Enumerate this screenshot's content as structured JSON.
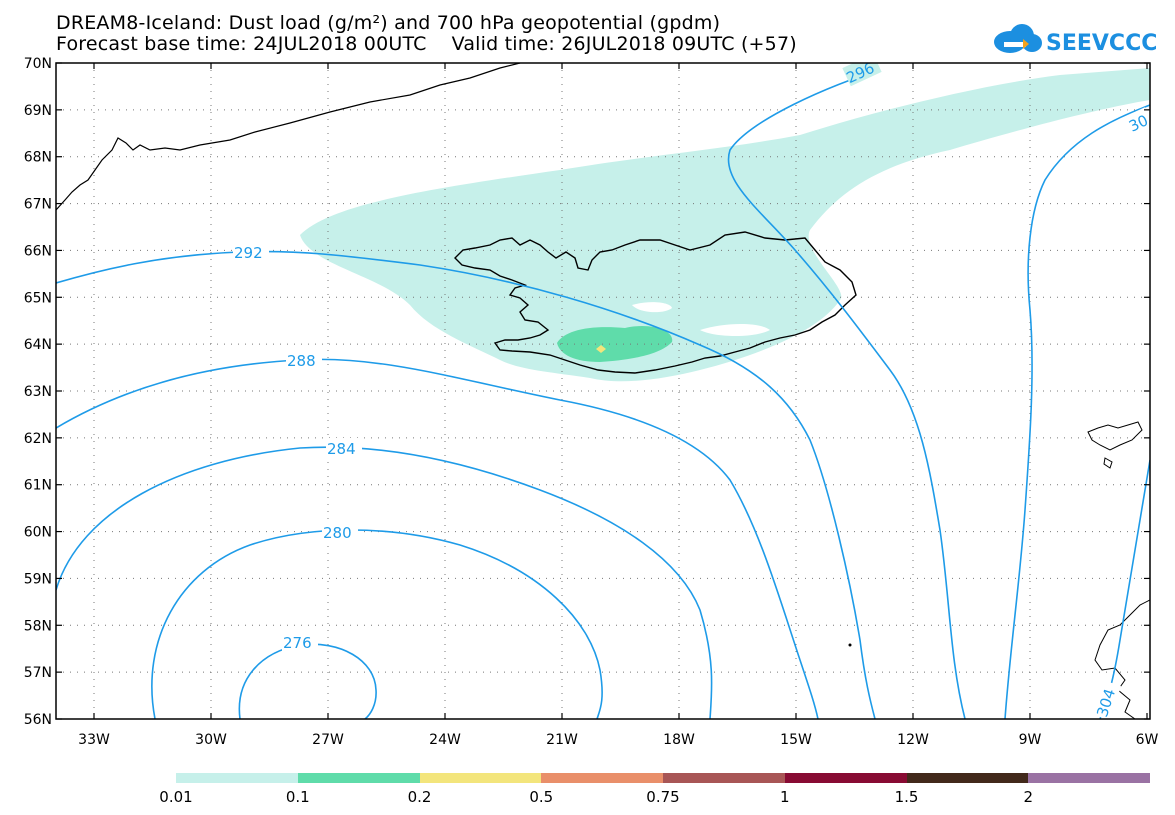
{
  "title": {
    "line1": "DREAM8-Iceland: Dust load (g/m²) and 700 hPa geopotential (gpdm)",
    "line2": "Forecast base time: 24JUL2018 00UTC    Valid time: 26JUL2018 09UTC (+57)"
  },
  "logo": {
    "text": "SEEVCCC",
    "icon": "cloud-icon",
    "color": "#1c8fe0"
  },
  "map": {
    "lat_labels": [
      "70N",
      "69N",
      "68N",
      "67N",
      "66N",
      "65N",
      "64N",
      "63N",
      "62N",
      "61N",
      "60N",
      "59N",
      "58N",
      "57N",
      "56N"
    ],
    "lon_labels": [
      "33W",
      "30W",
      "27W",
      "24W",
      "21W",
      "18W",
      "15W",
      "12W",
      "9W",
      "6W"
    ],
    "contour_color": "#1e9be8",
    "contour_labels": [
      "296",
      "30",
      "292",
      "288",
      "284",
      "280",
      "276",
      "304"
    ],
    "dust_colors": {
      "low": "#c6f0ea",
      "mid": "#5fdcaa",
      "high": "#f3e57c"
    }
  },
  "colorbar": {
    "colors": [
      "#c6f0ea",
      "#5fdcaa",
      "#f3e57c",
      "#e98f6a",
      "#a85656",
      "#880b33",
      "#42291b",
      "#9a72a3"
    ],
    "labels": [
      "0.01",
      "0.1",
      "0.2",
      "0.5",
      "0.75",
      "1",
      "1.5",
      "2"
    ]
  }
}
